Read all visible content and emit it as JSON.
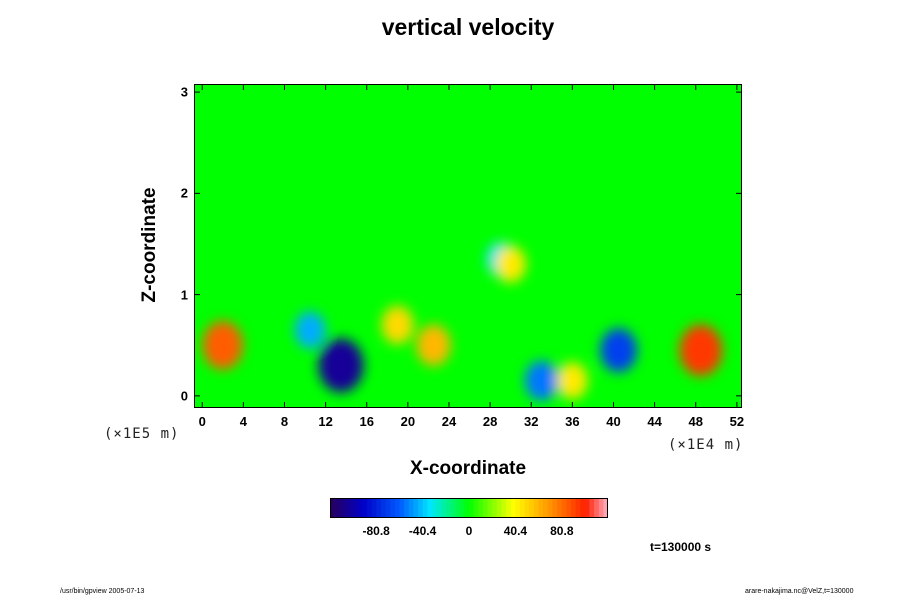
{
  "chart_data": {
    "type": "heatmap",
    "title": "vertical velocity",
    "xlabel": "X-coordinate",
    "ylabel": "Z-coordinate",
    "x_unit": "(×1E4 m)",
    "y_unit": "(×1E5 m)",
    "x_ticks": [
      "0",
      "4",
      "8",
      "12",
      "16",
      "20",
      "24",
      "28",
      "32",
      "36",
      "40",
      "44",
      "48",
      "52"
    ],
    "y_ticks": [
      "0",
      "1",
      "2",
      "3"
    ],
    "xlim": [
      -0.8,
      52.5
    ],
    "ylim": [
      -0.12,
      3.08
    ],
    "colorbar": {
      "ticks": [
        "-80.8",
        "-40.4",
        "0",
        "40.4",
        "80.8"
      ],
      "range": [
        -121,
        121
      ]
    },
    "features": [
      {
        "x": 13.5,
        "z": 0.3,
        "value": -105
      },
      {
        "x": 40.5,
        "z": 0.45,
        "value": -70
      },
      {
        "x": 10.5,
        "z": 0.65,
        "value": -45
      },
      {
        "x": 33.0,
        "z": 0.15,
        "value": -55
      },
      {
        "x": 29.0,
        "z": 1.35,
        "value": -35
      },
      {
        "x": 2.0,
        "z": 0.5,
        "value": 85
      },
      {
        "x": 48.5,
        "z": 0.45,
        "value": 95
      },
      {
        "x": 22.5,
        "z": 0.5,
        "value": 60
      },
      {
        "x": 30.0,
        "z": 1.3,
        "value": 45
      },
      {
        "x": 36.0,
        "z": 0.15,
        "value": 45
      },
      {
        "x": 19.0,
        "z": 0.7,
        "value": 50
      }
    ],
    "time_label": "t=130000 s"
  },
  "footer": {
    "left": "/usr/bin/gpview 2005-07-13",
    "right": "arare-nakajima.nc@VelZ,t=130000"
  }
}
